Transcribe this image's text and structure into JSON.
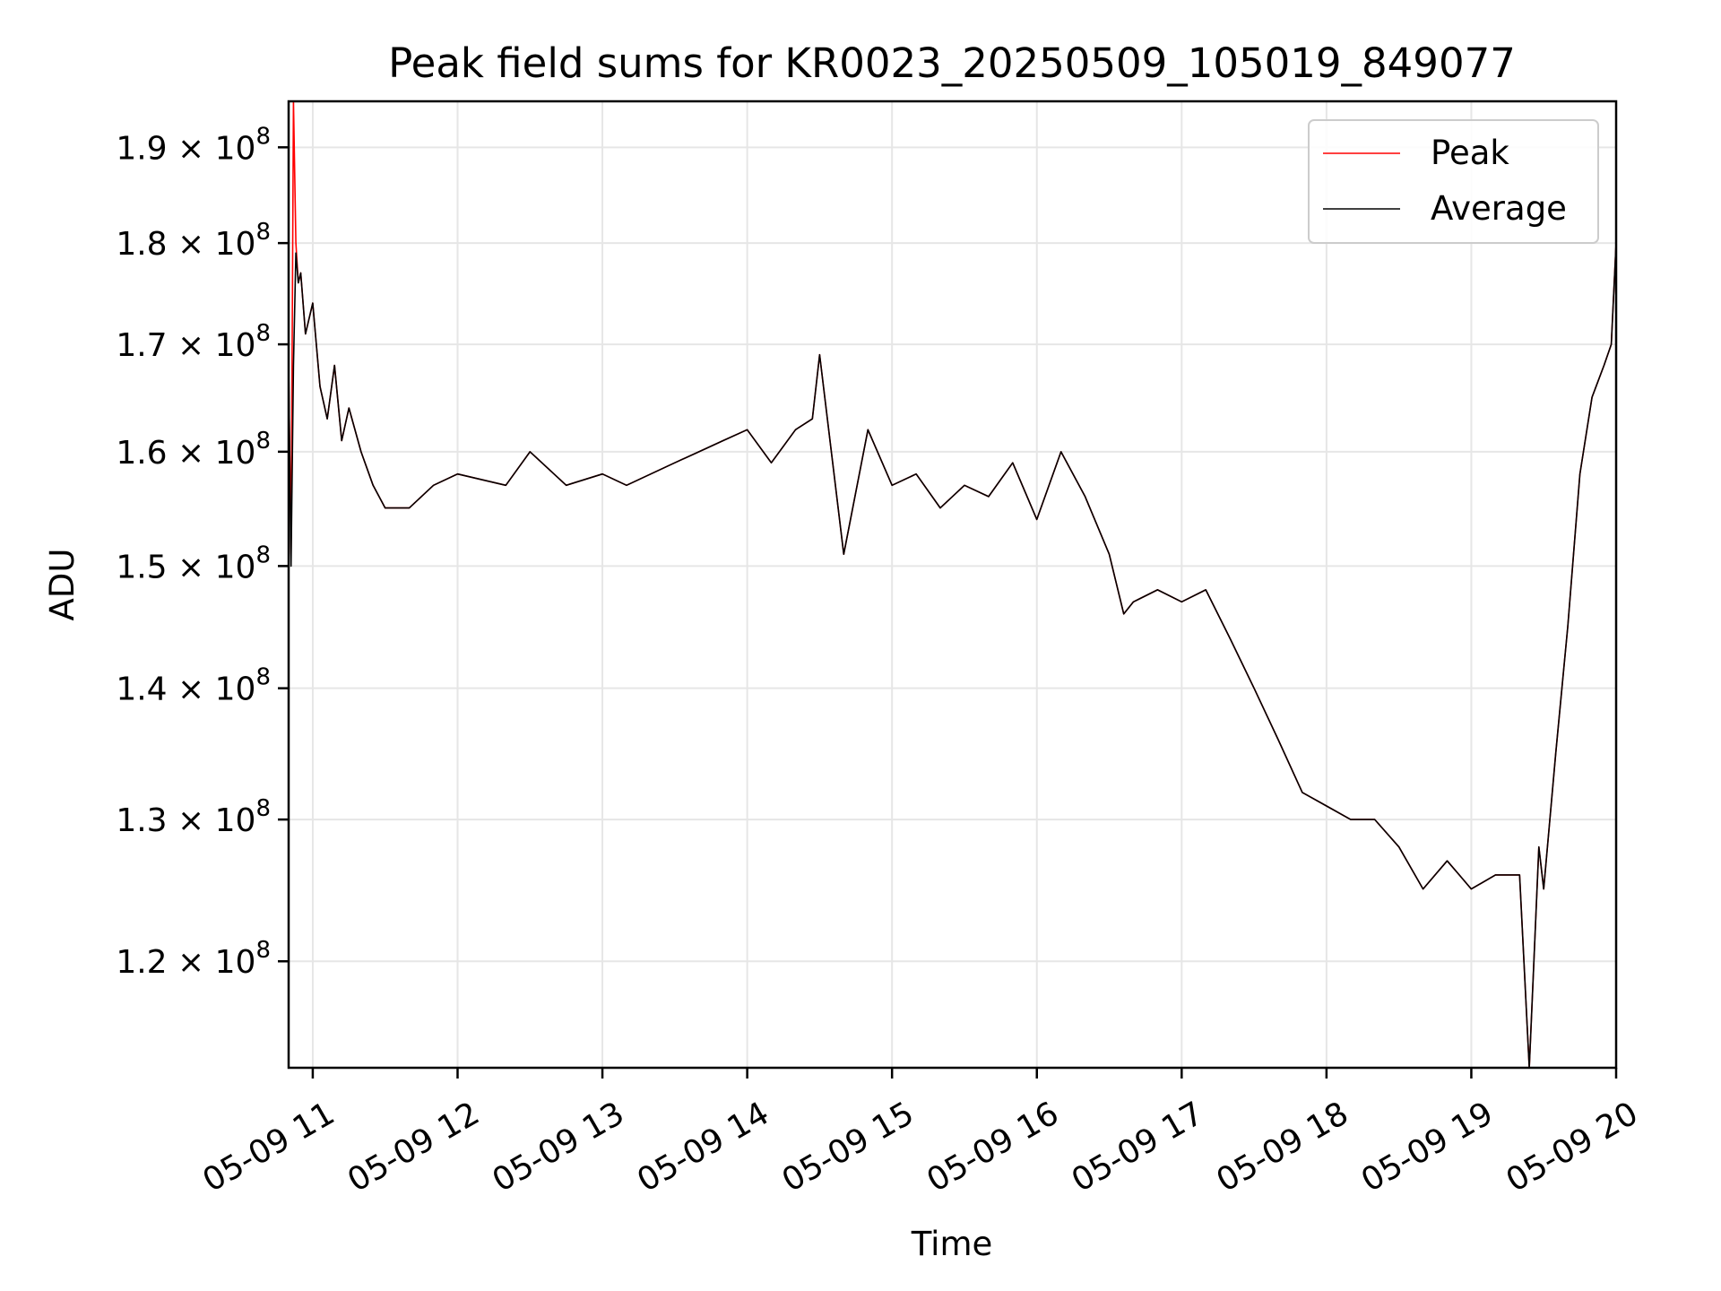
{
  "chart_data": {
    "type": "line",
    "title": "Peak field sums for KR0023_20250509_105019_849077",
    "xlabel": "Time",
    "ylabel": "ADU",
    "y_scale": "log",
    "ylim": [
      113000000,
      195000000
    ],
    "xlim": [
      "2025-05-09T10:50:00",
      "2025-05-09T20:00:00"
    ],
    "x_tick_labels": [
      "05-09 11",
      "05-09 12",
      "05-09 13",
      "05-09 14",
      "05-09 15",
      "05-09 16",
      "05-09 17",
      "05-09 18",
      "05-09 19",
      "05-09 20"
    ],
    "x_ticks": [
      "2025-05-09T11:00:00",
      "2025-05-09T12:00:00",
      "2025-05-09T13:00:00",
      "2025-05-09T14:00:00",
      "2025-05-09T15:00:00",
      "2025-05-09T16:00:00",
      "2025-05-09T17:00:00",
      "2025-05-09T18:00:00",
      "2025-05-09T19:00:00",
      "2025-05-09T20:00:00"
    ],
    "y_ticks": [
      120000000,
      130000000,
      140000000,
      150000000,
      160000000,
      170000000,
      180000000,
      190000000
    ],
    "y_tick_labels": [
      {
        "mantissa": "1.2",
        "times": "×",
        "base": "10",
        "exp": "8"
      },
      {
        "mantissa": "1.3",
        "times": "×",
        "base": "10",
        "exp": "8"
      },
      {
        "mantissa": "1.4",
        "times": "×",
        "base": "10",
        "exp": "8"
      },
      {
        "mantissa": "1.5",
        "times": "×",
        "base": "10",
        "exp": "8"
      },
      {
        "mantissa": "1.6",
        "times": "×",
        "base": "10",
        "exp": "8"
      },
      {
        "mantissa": "1.7",
        "times": "×",
        "base": "10",
        "exp": "8"
      },
      {
        "mantissa": "1.8",
        "times": "×",
        "base": "10",
        "exp": "8"
      },
      {
        "mantissa": "1.9",
        "times": "×",
        "base": "10",
        "exp": "8"
      }
    ],
    "grid": true,
    "legend": {
      "location": "upper right"
    },
    "series": [
      {
        "name": "Peak",
        "color": "#ff0000",
        "x": [
          "2025-05-09T10:50:00",
          "2025-05-09T10:51:00",
          "2025-05-09T10:52:00",
          "2025-05-09T10:53:00",
          "2025-05-09T10:54:00",
          "2025-05-09T10:55:00",
          "2025-05-09T10:57:00",
          "2025-05-09T11:00:00",
          "2025-05-09T11:03:00",
          "2025-05-09T11:06:00",
          "2025-05-09T11:09:00",
          "2025-05-09T11:12:00",
          "2025-05-09T11:15:00",
          "2025-05-09T11:20:00",
          "2025-05-09T11:25:00",
          "2025-05-09T11:30:00",
          "2025-05-09T11:40:00",
          "2025-05-09T11:50:00",
          "2025-05-09T12:00:00",
          "2025-05-09T12:20:00",
          "2025-05-09T12:30:00",
          "2025-05-09T12:45:00",
          "2025-05-09T13:00:00",
          "2025-05-09T13:10:00",
          "2025-05-09T13:30:00",
          "2025-05-09T13:40:00",
          "2025-05-09T13:50:00",
          "2025-05-09T14:00:00",
          "2025-05-09T14:10:00",
          "2025-05-09T14:20:00",
          "2025-05-09T14:27:00",
          "2025-05-09T14:30:00",
          "2025-05-09T14:40:00",
          "2025-05-09T14:50:00",
          "2025-05-09T15:00:00",
          "2025-05-09T15:10:00",
          "2025-05-09T15:20:00",
          "2025-05-09T15:30:00",
          "2025-05-09T15:40:00",
          "2025-05-09T15:50:00",
          "2025-05-09T16:00:00",
          "2025-05-09T16:10:00",
          "2025-05-09T16:20:00",
          "2025-05-09T16:30:00",
          "2025-05-09T16:36:00",
          "2025-05-09T16:40:00",
          "2025-05-09T16:50:00",
          "2025-05-09T17:00:00",
          "2025-05-09T17:10:00",
          "2025-05-09T17:20:00",
          "2025-05-09T17:30:00",
          "2025-05-09T17:40:00",
          "2025-05-09T17:50:00",
          "2025-05-09T18:00:00",
          "2025-05-09T18:10:00",
          "2025-05-09T18:20:00",
          "2025-05-09T18:30:00",
          "2025-05-09T18:40:00",
          "2025-05-09T18:50:00",
          "2025-05-09T18:55:00",
          "2025-05-09T19:00:00",
          "2025-05-09T19:10:00",
          "2025-05-09T19:20:00",
          "2025-05-09T19:24:00",
          "2025-05-09T19:28:00",
          "2025-05-09T19:30:00",
          "2025-05-09T19:35:00",
          "2025-05-09T19:40:00",
          "2025-05-09T19:45:00",
          "2025-05-09T19:50:00",
          "2025-05-09T19:55:00",
          "2025-05-09T19:58:00",
          "2025-05-09T20:00:00"
        ],
        "values": [
          168000000,
          151000000,
          195000000,
          180000000,
          176000000,
          177000000,
          171000000,
          174000000,
          166000000,
          163000000,
          168000000,
          161000000,
          164000000,
          160000000,
          157000000,
          155000000,
          155000000,
          157000000,
          158000000,
          157000000,
          160000000,
          157000000,
          158000000,
          157000000,
          159000000,
          160000000,
          161000000,
          162000000,
          159000000,
          162000000,
          163000000,
          169000000,
          151000000,
          162000000,
          157000000,
          158000000,
          155000000,
          157000000,
          156000000,
          159000000,
          154000000,
          160000000,
          156000000,
          151000000,
          146000000,
          147000000,
          148000000,
          147000000,
          148000000,
          144000000,
          140000000,
          136000000,
          132000000,
          131000000,
          130000000,
          130000000,
          128000000,
          125000000,
          127000000,
          126000000,
          125000000,
          126000000,
          126000000,
          113000000,
          128000000,
          125000000,
          135000000,
          145000000,
          158000000,
          165000000,
          168000000,
          170000000,
          180000000
        ]
      },
      {
        "name": "Average",
        "color": "#000000",
        "x": [
          "2025-05-09T10:50:00",
          "2025-05-09T10:51:00",
          "2025-05-09T10:52:00",
          "2025-05-09T10:53:00",
          "2025-05-09T10:54:00",
          "2025-05-09T10:55:00",
          "2025-05-09T10:57:00",
          "2025-05-09T11:00:00",
          "2025-05-09T11:03:00",
          "2025-05-09T11:06:00",
          "2025-05-09T11:09:00",
          "2025-05-09T11:12:00",
          "2025-05-09T11:15:00",
          "2025-05-09T11:20:00",
          "2025-05-09T11:25:00",
          "2025-05-09T11:30:00",
          "2025-05-09T11:40:00",
          "2025-05-09T11:50:00",
          "2025-05-09T12:00:00",
          "2025-05-09T12:20:00",
          "2025-05-09T12:30:00",
          "2025-05-09T12:45:00",
          "2025-05-09T13:00:00",
          "2025-05-09T13:10:00",
          "2025-05-09T13:30:00",
          "2025-05-09T13:40:00",
          "2025-05-09T13:50:00",
          "2025-05-09T14:00:00",
          "2025-05-09T14:10:00",
          "2025-05-09T14:20:00",
          "2025-05-09T14:27:00",
          "2025-05-09T14:30:00",
          "2025-05-09T14:40:00",
          "2025-05-09T14:50:00",
          "2025-05-09T15:00:00",
          "2025-05-09T15:10:00",
          "2025-05-09T15:20:00",
          "2025-05-09T15:30:00",
          "2025-05-09T15:40:00",
          "2025-05-09T15:50:00",
          "2025-05-09T16:00:00",
          "2025-05-09T16:10:00",
          "2025-05-09T16:20:00",
          "2025-05-09T16:30:00",
          "2025-05-09T16:36:00",
          "2025-05-09T16:40:00",
          "2025-05-09T16:50:00",
          "2025-05-09T17:00:00",
          "2025-05-09T17:10:00",
          "2025-05-09T17:20:00",
          "2025-05-09T17:30:00",
          "2025-05-09T17:40:00",
          "2025-05-09T17:50:00",
          "2025-05-09T18:00:00",
          "2025-05-09T18:10:00",
          "2025-05-09T18:20:00",
          "2025-05-09T18:30:00",
          "2025-05-09T18:40:00",
          "2025-05-09T18:50:00",
          "2025-05-09T18:55:00",
          "2025-05-09T19:00:00",
          "2025-05-09T19:10:00",
          "2025-05-09T19:20:00",
          "2025-05-09T19:24:00",
          "2025-05-09T19:28:00",
          "2025-05-09T19:30:00",
          "2025-05-09T19:35:00",
          "2025-05-09T19:40:00",
          "2025-05-09T19:45:00",
          "2025-05-09T19:50:00",
          "2025-05-09T19:55:00",
          "2025-05-09T19:58:00",
          "2025-05-09T20:00:00"
        ],
        "values": [
          168000000,
          150000000,
          168000000,
          179000000,
          176000000,
          177000000,
          171000000,
          174000000,
          166000000,
          163000000,
          168000000,
          161000000,
          164000000,
          160000000,
          157000000,
          155000000,
          155000000,
          157000000,
          158000000,
          157000000,
          160000000,
          157000000,
          158000000,
          157000000,
          159000000,
          160000000,
          161000000,
          162000000,
          159000000,
          162000000,
          163000000,
          169000000,
          151000000,
          162000000,
          157000000,
          158000000,
          155000000,
          157000000,
          156000000,
          159000000,
          154000000,
          160000000,
          156000000,
          151000000,
          146000000,
          147000000,
          148000000,
          147000000,
          148000000,
          144000000,
          140000000,
          136000000,
          132000000,
          131000000,
          130000000,
          130000000,
          128000000,
          125000000,
          127000000,
          126000000,
          125000000,
          126000000,
          126000000,
          113000000,
          128000000,
          125000000,
          135000000,
          145000000,
          158000000,
          165000000,
          168000000,
          170000000,
          180000000
        ]
      }
    ]
  }
}
